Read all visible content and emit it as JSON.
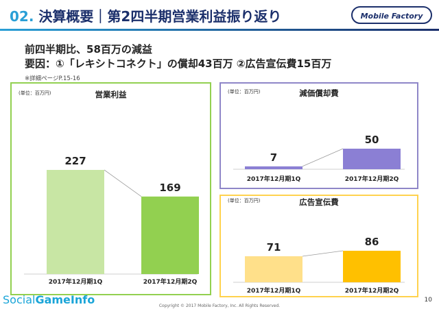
{
  "header": {
    "number": "02.",
    "title": "決算概要｜第2四半期営業利益振り返り",
    "logo_text": "Mobile Factory"
  },
  "headline": {
    "line1": "前四半期比、58百万の減益",
    "line2": "要因：①「レキシトコネクト」の償却43百万 ②広告宣伝費15百万"
  },
  "note": "※詳細ページP.15-16",
  "colors": {
    "accent": "#2a9fd6",
    "navy": "#1b2f6b"
  },
  "chart_data": [
    {
      "type": "bar",
      "title": "営業利益",
      "unit": "(単位：百万円)",
      "categories": [
        "2017年12月期1Q",
        "2017年12月期2Q"
      ],
      "values": [
        227,
        169
      ],
      "ylim": [
        0,
        227
      ],
      "bar_colors": [
        "#c8e6a4",
        "#92d050"
      ],
      "border_color": "#92d050"
    },
    {
      "type": "bar",
      "title": "減価償却費",
      "unit": "(単位：百万円)",
      "categories": [
        "2017年12月期1Q",
        "2017年12月期2Q"
      ],
      "values": [
        7,
        50
      ],
      "ylim": [
        0,
        50
      ],
      "bar_colors": [
        "#8b7fd4",
        "#8b7fd4"
      ],
      "border_color": "#8e86c8"
    },
    {
      "type": "bar",
      "title": "広告宣伝費",
      "unit": "(単位：百万円)",
      "categories": [
        "2017年12月期1Q",
        "2017年12月期2Q"
      ],
      "values": [
        71,
        86
      ],
      "ylim": [
        0,
        86
      ],
      "bar_colors": [
        "#ffe08a",
        "#ffc000"
      ],
      "border_color": "#ffd24d"
    }
  ],
  "footer": {
    "brand_a": "Social",
    "brand_b": "Game",
    "brand_c": "Info",
    "copyright": "Copyright © 2017 Mobile Factory, Inc. All Rights Reserved.",
    "page": "10"
  }
}
